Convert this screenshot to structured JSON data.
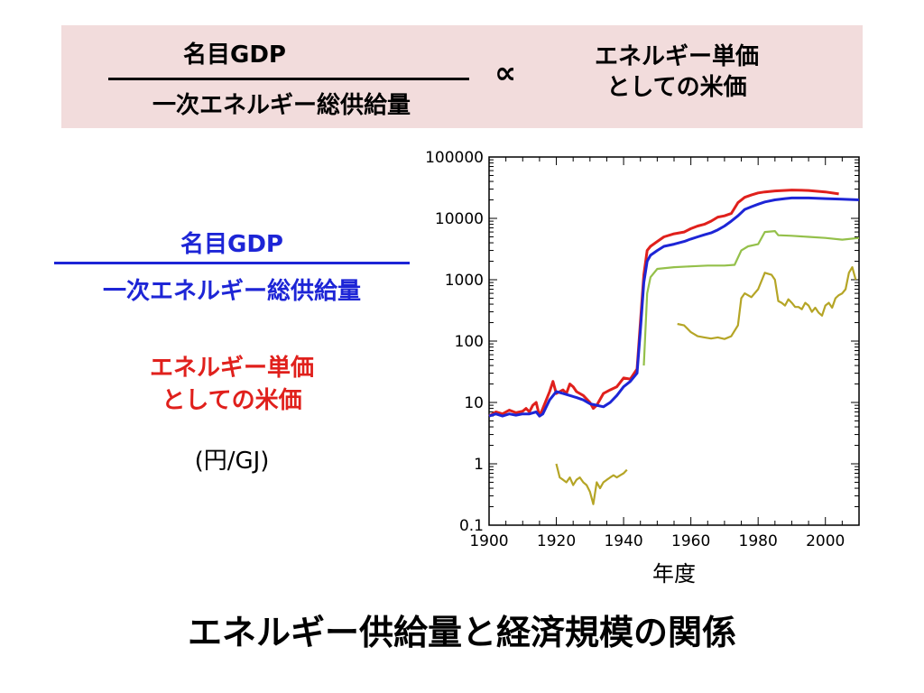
{
  "banner": {
    "numerator": "名目GDP",
    "denominator": "一次エネルギー総供給量",
    "proportional_symbol": "∝",
    "right_line1": "エネルギー単価",
    "right_line2": "としての米価"
  },
  "legend_left": {
    "blue_numerator": "名目GDP",
    "blue_denominator": "一次エネルギー総供給量",
    "red_line1": "エネルギー単価",
    "red_line2": "としての米価",
    "unit": "(円/GJ)"
  },
  "bottom_title": "エネルギー供給量と経済規模の関係",
  "colors": {
    "banner_bg": "#f2dcdc",
    "blue": "#1d25d6",
    "red": "#e0201c",
    "olive": "#b5a526",
    "green": "#94c04a"
  },
  "chart_data": {
    "type": "line",
    "xlabel": "年度",
    "ylabel": "",
    "xlim": [
      1900,
      2010
    ],
    "ylim": [
      0.1,
      100000
    ],
    "y_scale": "log",
    "x_ticks": [
      1900,
      1920,
      1940,
      1960,
      1980,
      2000
    ],
    "y_ticks": [
      {
        "value": 0.1,
        "label": "0.1"
      },
      {
        "value": 1,
        "label": "1"
      },
      {
        "value": 10,
        "label": "10"
      },
      {
        "value": 100,
        "label": "100"
      },
      {
        "value": 1000,
        "label": "1000"
      },
      {
        "value": 10000,
        "label": "10000"
      },
      {
        "value": 100000,
        "label": "100000"
      }
    ],
    "grid": false,
    "series": [
      {
        "color": "#e0201c",
        "points": [
          [
            1900,
            6
          ],
          [
            1902,
            7
          ],
          [
            1904,
            6.5
          ],
          [
            1906,
            7.5
          ],
          [
            1908,
            6.8
          ],
          [
            1910,
            7.2
          ],
          [
            1911,
            8
          ],
          [
            1912,
            7
          ],
          [
            1913,
            9
          ],
          [
            1914,
            10
          ],
          [
            1915,
            6
          ],
          [
            1916,
            8
          ],
          [
            1918,
            15
          ],
          [
            1919,
            22
          ],
          [
            1920,
            14
          ],
          [
            1922,
            16
          ],
          [
            1923,
            14
          ],
          [
            1924,
            20
          ],
          [
            1925,
            18
          ],
          [
            1926,
            15
          ],
          [
            1928,
            13
          ],
          [
            1930,
            10
          ],
          [
            1931,
            8
          ],
          [
            1932,
            9
          ],
          [
            1934,
            14
          ],
          [
            1936,
            16
          ],
          [
            1938,
            18
          ],
          [
            1940,
            25
          ],
          [
            1942,
            24
          ],
          [
            1944,
            35
          ],
          [
            1945,
            200
          ],
          [
            1946,
            1200
          ],
          [
            1947,
            3000
          ],
          [
            1948,
            3500
          ],
          [
            1950,
            4200
          ],
          [
            1952,
            5000
          ],
          [
            1955,
            5600
          ],
          [
            1958,
            6000
          ],
          [
            1960,
            6800
          ],
          [
            1962,
            7500
          ],
          [
            1964,
            8000
          ],
          [
            1966,
            9000
          ],
          [
            1968,
            10500
          ],
          [
            1970,
            11000
          ],
          [
            1972,
            12000
          ],
          [
            1974,
            18000
          ],
          [
            1976,
            22000
          ],
          [
            1978,
            24000
          ],
          [
            1980,
            26000
          ],
          [
            1982,
            27000
          ],
          [
            1985,
            28000
          ],
          [
            1990,
            29000
          ],
          [
            1995,
            28500
          ],
          [
            2000,
            27000
          ],
          [
            2004,
            25000
          ]
        ]
      },
      {
        "color": "#1d25d6",
        "points": [
          [
            1900,
            6
          ],
          [
            1902,
            6.5
          ],
          [
            1904,
            6
          ],
          [
            1906,
            6.5
          ],
          [
            1908,
            6.2
          ],
          [
            1910,
            6.5
          ],
          [
            1912,
            6.5
          ],
          [
            1914,
            7
          ],
          [
            1915,
            6
          ],
          [
            1916,
            6.5
          ],
          [
            1918,
            11
          ],
          [
            1920,
            15
          ],
          [
            1922,
            14
          ],
          [
            1924,
            13
          ],
          [
            1926,
            12
          ],
          [
            1928,
            11
          ],
          [
            1930,
            9.5
          ],
          [
            1932,
            9
          ],
          [
            1934,
            8.5
          ],
          [
            1936,
            10
          ],
          [
            1938,
            13
          ],
          [
            1940,
            18
          ],
          [
            1942,
            22
          ],
          [
            1944,
            30
          ],
          [
            1945,
            150
          ],
          [
            1946,
            900
          ],
          [
            1947,
            2000
          ],
          [
            1948,
            2500
          ],
          [
            1950,
            3000
          ],
          [
            1952,
            3500
          ],
          [
            1955,
            3800
          ],
          [
            1958,
            4200
          ],
          [
            1960,
            4600
          ],
          [
            1962,
            5000
          ],
          [
            1964,
            5400
          ],
          [
            1966,
            5800
          ],
          [
            1968,
            6500
          ],
          [
            1970,
            7500
          ],
          [
            1972,
            9000
          ],
          [
            1974,
            11000
          ],
          [
            1976,
            14000
          ],
          [
            1978,
            15500
          ],
          [
            1980,
            17000
          ],
          [
            1982,
            18500
          ],
          [
            1985,
            20000
          ],
          [
            1988,
            21000
          ],
          [
            1990,
            21500
          ],
          [
            1995,
            21500
          ],
          [
            2000,
            21000
          ],
          [
            2005,
            20500
          ],
          [
            2010,
            20000
          ]
        ]
      },
      {
        "color": "#94c04a",
        "points": [
          [
            1946,
            40
          ],
          [
            1947,
            600
          ],
          [
            1948,
            1100
          ],
          [
            1950,
            1500
          ],
          [
            1955,
            1600
          ],
          [
            1960,
            1650
          ],
          [
            1965,
            1700
          ],
          [
            1970,
            1700
          ],
          [
            1973,
            1750
          ],
          [
            1975,
            3000
          ],
          [
            1977,
            3500
          ],
          [
            1980,
            3800
          ],
          [
            1982,
            6000
          ],
          [
            1985,
            6200
          ],
          [
            1986,
            5300
          ],
          [
            1990,
            5200
          ],
          [
            1995,
            5000
          ],
          [
            2000,
            4800
          ],
          [
            2005,
            4500
          ],
          [
            2010,
            4800
          ]
        ]
      },
      {
        "color": "#b5a526",
        "points": [
          [
            1920,
            1
          ],
          [
            1921,
            0.6
          ],
          [
            1922,
            0.55
          ],
          [
            1923,
            0.5
          ],
          [
            1924,
            0.6
          ],
          [
            1925,
            0.45
          ],
          [
            1926,
            0.55
          ],
          [
            1927,
            0.6
          ],
          [
            1928,
            0.5
          ],
          [
            1929,
            0.45
          ],
          [
            1930,
            0.35
          ],
          [
            1931,
            0.22
          ],
          [
            1932,
            0.5
          ],
          [
            1933,
            0.4
          ],
          [
            1934,
            0.5
          ],
          [
            1935,
            0.55
          ],
          [
            1936,
            0.6
          ],
          [
            1937,
            0.65
          ],
          [
            1938,
            0.6
          ],
          [
            1939,
            0.65
          ],
          [
            1940,
            0.7
          ],
          [
            1941,
            0.8
          ]
        ]
      },
      {
        "color": "#b5a526",
        "points": [
          [
            1956,
            190
          ],
          [
            1958,
            180
          ],
          [
            1960,
            140
          ],
          [
            1962,
            120
          ],
          [
            1964,
            115
          ],
          [
            1966,
            110
          ],
          [
            1968,
            115
          ],
          [
            1970,
            108
          ],
          [
            1972,
            120
          ],
          [
            1974,
            180
          ],
          [
            1975,
            500
          ],
          [
            1976,
            600
          ],
          [
            1978,
            520
          ],
          [
            1980,
            700
          ],
          [
            1982,
            1300
          ],
          [
            1984,
            1200
          ],
          [
            1985,
            1000
          ],
          [
            1986,
            450
          ],
          [
            1987,
            420
          ],
          [
            1988,
            380
          ],
          [
            1989,
            480
          ],
          [
            1990,
            420
          ],
          [
            1991,
            360
          ],
          [
            1992,
            360
          ],
          [
            1993,
            330
          ],
          [
            1994,
            420
          ],
          [
            1995,
            380
          ],
          [
            1996,
            300
          ],
          [
            1997,
            350
          ],
          [
            1998,
            290
          ],
          [
            1999,
            260
          ],
          [
            2000,
            380
          ],
          [
            2001,
            420
          ],
          [
            2002,
            350
          ],
          [
            2003,
            500
          ],
          [
            2004,
            560
          ],
          [
            2005,
            600
          ],
          [
            2006,
            700
          ],
          [
            2007,
            1300
          ],
          [
            2008,
            1600
          ],
          [
            2009,
            1000
          ]
        ]
      }
    ]
  }
}
